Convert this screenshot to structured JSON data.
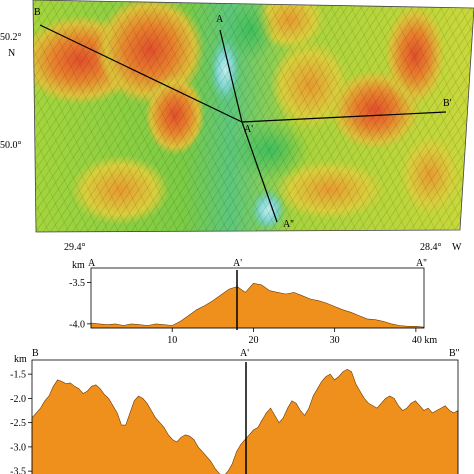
{
  "map": {
    "lat_labels": [
      "50.2°",
      "N",
      "50.0°"
    ],
    "lon_labels": [
      "29.4°",
      "28.4°",
      "W"
    ],
    "points": [
      "B",
      "A",
      "A'",
      "A''",
      "B'"
    ]
  },
  "profile_a": {
    "end_labels": [
      "A",
      "A'",
      "A''"
    ],
    "unit": "km",
    "y_ticks": [
      "-3.5",
      "-4.0"
    ],
    "x_ticks": [
      "10",
      "20",
      "30",
      "40 km"
    ]
  },
  "profile_b": {
    "end_labels": [
      "B",
      "A'",
      "B''"
    ],
    "unit": "km",
    "y_ticks": [
      "-1.5",
      "-2.0",
      "-2.5",
      "-3.0",
      "-3.5"
    ]
  },
  "colors": {
    "fill": "#f0901c",
    "map_high": "#e0502a",
    "map_mid": "#d8d840",
    "map_low": "#46c06a",
    "map_deep": "#7fd6cf"
  },
  "chart_data": [
    {
      "type": "area",
      "x_ticks": [
        10,
        20,
        30,
        40
      ],
      "ylim": [
        -4.05,
        -3.35
      ],
      "x": [
        0,
        1,
        2,
        3,
        4,
        5,
        6,
        7,
        8,
        9,
        10,
        11,
        12,
        13,
        14,
        15,
        16,
        17,
        18,
        19,
        20,
        21,
        22,
        23,
        24,
        25,
        26,
        27,
        28,
        29,
        30,
        31,
        32,
        33,
        34,
        35,
        36,
        37,
        38,
        39,
        40,
        41
      ],
      "y": [
        -3.99,
        -4.0,
        -4.01,
        -4.0,
        -4.02,
        -4.0,
        -4.01,
        -4.02,
        -4.0,
        -4.01,
        -4.02,
        -3.97,
        -3.9,
        -3.83,
        -3.78,
        -3.72,
        -3.65,
        -3.58,
        -3.55,
        -3.62,
        -3.51,
        -3.53,
        -3.6,
        -3.62,
        -3.64,
        -3.62,
        -3.66,
        -3.7,
        -3.72,
        -3.75,
        -3.79,
        -3.83,
        -3.86,
        -3.9,
        -3.94,
        -3.95,
        -3.97,
        -4.0,
        -4.02,
        -4.03,
        -4.03,
        -4.04
      ]
    },
    {
      "type": "area",
      "ylim": [
        -3.6,
        -1.25
      ],
      "x": [
        0,
        1,
        2,
        3,
        4,
        5,
        6,
        7,
        8,
        9,
        10,
        11,
        12,
        13,
        14,
        15,
        16,
        17,
        18,
        19,
        20,
        21,
        22,
        23,
        24,
        25,
        26,
        27,
        28,
        29,
        30,
        31,
        32,
        33,
        34,
        35,
        36,
        37,
        38,
        39,
        40,
        41,
        42,
        43,
        44,
        45,
        46,
        47,
        48,
        49,
        50,
        51,
        52,
        53,
        54,
        55,
        56,
        57,
        58,
        59,
        60,
        61,
        62,
        63,
        64,
        65,
        66,
        67,
        68,
        69,
        70,
        71,
        72,
        73,
        74,
        75,
        76,
        77,
        78,
        79,
        80,
        81,
        82,
        83,
        84,
        85,
        86,
        87,
        88,
        89,
        90,
        91,
        92,
        93,
        94,
        95,
        96,
        97,
        98,
        99,
        100
      ],
      "y": [
        -2.4,
        -2.3,
        -2.2,
        -2.05,
        -1.95,
        -1.75,
        -1.62,
        -1.65,
        -1.7,
        -1.68,
        -1.75,
        -1.8,
        -1.9,
        -1.85,
        -1.75,
        -1.72,
        -1.8,
        -1.92,
        -2.0,
        -2.15,
        -2.3,
        -2.55,
        -2.55,
        -2.3,
        -2.05,
        -1.95,
        -2.0,
        -2.1,
        -2.25,
        -2.4,
        -2.5,
        -2.6,
        -2.75,
        -2.85,
        -2.9,
        -2.8,
        -2.75,
        -2.78,
        -2.85,
        -3.0,
        -3.1,
        -3.2,
        -3.3,
        -3.45,
        -3.55,
        -3.6,
        -3.5,
        -3.35,
        -3.1,
        -2.95,
        -2.85,
        -2.75,
        -2.65,
        -2.6,
        -2.45,
        -2.3,
        -2.2,
        -2.35,
        -2.5,
        -2.4,
        -2.2,
        -2.05,
        -2.1,
        -2.25,
        -2.35,
        -2.2,
        -1.95,
        -1.8,
        -1.65,
        -1.55,
        -1.5,
        -1.62,
        -1.55,
        -1.45,
        -1.4,
        -1.45,
        -1.7,
        -1.85,
        -2.0,
        -2.1,
        -2.15,
        -2.2,
        -2.1,
        -2.0,
        -1.95,
        -2.0,
        -2.15,
        -2.25,
        -2.2,
        -2.1,
        -2.05,
        -2.15,
        -2.25,
        -2.2,
        -2.3,
        -2.25,
        -2.2,
        -2.15,
        -2.25,
        -2.3,
        -2.25
      ]
    }
  ]
}
